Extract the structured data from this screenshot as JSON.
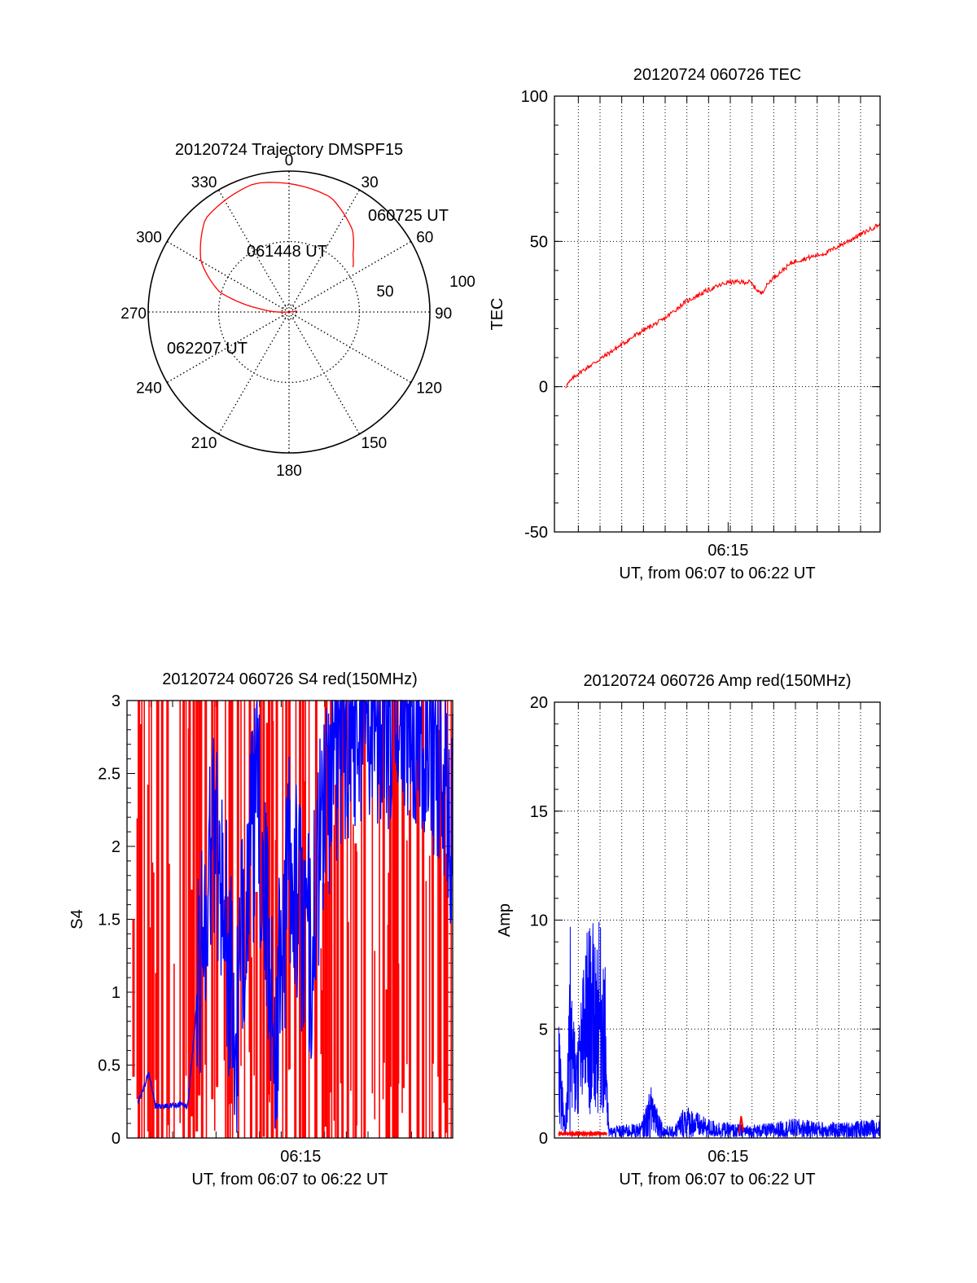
{
  "chart_data": [
    {
      "type": "polar",
      "title": "20120724 Trajectory DMSPF15",
      "azimuth_labels": [
        "0",
        "30",
        "60",
        "90",
        "120",
        "150",
        "180",
        "210",
        "240",
        "270",
        "300",
        "330"
      ],
      "radial_ticks": [
        50,
        100
      ],
      "radial_tick_labels": [
        "50",
        "100"
      ],
      "series": [
        {
          "color": "#ff0000",
          "points": [
            {
              "az": 55,
              "el": 40
            },
            {
              "az": 48,
              "el": 35
            },
            {
              "az": 38,
              "el": 24
            },
            {
              "az": 20,
              "el": 12
            },
            {
              "az": 345,
              "el": 5
            },
            {
              "az": 318,
              "el": 10
            },
            {
              "az": 300,
              "el": 25
            },
            {
              "az": 286,
              "el": 44
            },
            {
              "az": 276,
              "el": 72
            },
            {
              "az": 263,
              "el": 95
            }
          ]
        }
      ],
      "annotations": [
        {
          "text": "060725 UT",
          "az": 55,
          "el": 40
        },
        {
          "text": "061448 UT",
          "az": 350,
          "el": 15
        },
        {
          "text": "062207 UT",
          "az": 257,
          "el": 80
        }
      ],
      "grid": true
    },
    {
      "type": "line",
      "title": "20120724 060726 TEC",
      "xlabel": "UT, from 06:07 to 06:22 UT",
      "ylabel": "TEC",
      "x_tick_labels": [
        "06:15"
      ],
      "ylim": [
        -50,
        100
      ],
      "y_ticks": [
        -50,
        0,
        50,
        100
      ],
      "grid": true,
      "series": [
        {
          "color": "#ff0000",
          "x_min": [
            0.5,
            1,
            2,
            3,
            4,
            5,
            6,
            7,
            8,
            9,
            9.5,
            10,
            10.5,
            11,
            11.5,
            12,
            12.5,
            13,
            13.5,
            14,
            14.5,
            15
          ],
          "values": [
            0,
            4,
            9,
            14,
            19,
            23,
            29,
            33,
            36,
            36,
            32,
            37,
            40,
            43,
            44,
            45,
            46,
            48,
            50,
            52,
            54,
            56
          ]
        }
      ]
    },
    {
      "type": "line",
      "title": "20120724 060726 S4 red(150MHz)",
      "xlabel": "UT, from 06:07 to 06:22 UT",
      "ylabel": "S4",
      "x_tick_labels": [
        "06:15"
      ],
      "ylim": [
        0,
        3
      ],
      "y_ticks": [
        0,
        0.5,
        1,
        1.5,
        2,
        2.5,
        3
      ],
      "y_tick_labels": [
        "0",
        "0.5",
        "1",
        "1.5",
        "2",
        "2.5",
        "3"
      ],
      "grid": false,
      "series": [
        {
          "color": "#0000ff",
          "x_min": [
            0.5,
            0.8,
            1.0,
            1.3,
            2.0,
            2.2,
            2.8,
            3.5,
            4.0,
            4.5,
            5.0,
            5.5,
            6.0,
            6.8,
            7.0,
            7.5,
            8.0,
            8.5,
            9.0,
            9.5,
            10.0,
            11.0,
            12.0,
            13.0,
            14.0,
            15.0
          ],
          "values": [
            0.25,
            0.35,
            0.45,
            0.22,
            0.22,
            0.23,
            0.22,
            1.4,
            2.2,
            1.6,
            0.55,
            1.8,
            2.3,
            0.7,
            1.0,
            2.0,
            1.5,
            1.3,
            2.2,
            2.6,
            2.8,
            3.0,
            2.9,
            3.0,
            2.8,
            2.2
          ]
        },
        {
          "color": "#ff0000",
          "note": "dense spikes spanning full range 0-3",
          "x_min": [],
          "values": []
        }
      ]
    },
    {
      "type": "line",
      "title": "20120724 060726 Amp red(150MHz)",
      "xlabel": "UT, from 06:07 to 06:22 UT",
      "ylabel": "Amp",
      "x_tick_labels": [
        "06:15"
      ],
      "ylim": [
        0,
        20
      ],
      "y_ticks": [
        0,
        5,
        10,
        15,
        20
      ],
      "grid": true,
      "series": [
        {
          "color": "#0000ff",
          "x_min": [
            0.2,
            0.5,
            0.7,
            1.0,
            1.5,
            2.0,
            2.3,
            2.5,
            3.0,
            4.0,
            4.5,
            5.0,
            5.5,
            6.0,
            7.0,
            8.0,
            9.0,
            10.0,
            11.0,
            12.0,
            13.0,
            14.0,
            15.0
          ],
          "values": [
            5.5,
            0.5,
            10.3,
            4.0,
            9.8,
            10.0,
            9.5,
            0.5,
            0.6,
            0.7,
            2.6,
            0.6,
            0.5,
            1.6,
            0.9,
            0.7,
            0.6,
            0.7,
            0.9,
            0.8,
            0.7,
            0.8,
            0.9
          ]
        },
        {
          "color": "#ff0000",
          "x_min": [
            0.2,
            1.0,
            2.0,
            2.4,
            8.5,
            8.8
          ],
          "values": [
            0.2,
            0.2,
            0.2,
            0.2,
            1.0,
            0.2
          ]
        }
      ]
    }
  ]
}
